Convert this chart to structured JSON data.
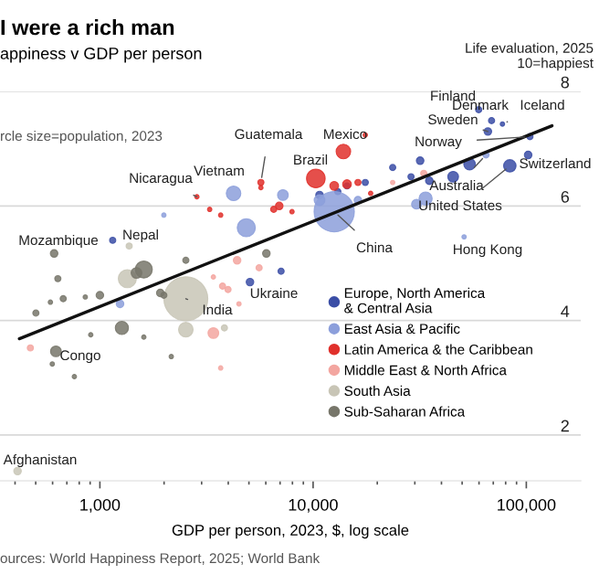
{
  "chart_data": {
    "type": "bubble",
    "title": "I were a rich man",
    "subtitle": "appiness v GDP per person",
    "ylabel": "Life evaluation, 2025\n10=happiest",
    "xlabel": "GDP per person, 2023, $, log scale",
    "log": "x",
    "xlim": [
      340,
      180000
    ],
    "ylim": [
      1.2,
      8
    ],
    "xticks": [
      {
        "value": 1000,
        "label": "1,000"
      },
      {
        "value": 10000,
        "label": "10,000"
      },
      {
        "value": 100000,
        "label": "100,000"
      }
    ],
    "yticks": [
      2,
      4,
      6,
      8
    ],
    "grid": "y",
    "legend": "bottom right",
    "series": [
      {
        "name": "Europe, North America\n& Central Asia",
        "color": "#3b4ea6",
        "x": [
          59800,
          68710,
          77270,
          66030,
          104000,
          102000,
          83700,
          54190,
          45380,
          35080,
          28790,
          23620,
          31770,
          17570,
          14420,
          10720,
          13060,
          5058,
          1148,
          7077
        ],
        "values": [
          7.68,
          7.49,
          7.43,
          7.3,
          7.21,
          6.89,
          6.7,
          6.73,
          6.51,
          6.44,
          6.51,
          6.67,
          6.79,
          6.41,
          6.35,
          6.19,
          6.25,
          4.67,
          5.4,
          4.86
        ],
        "sizes": [
          0.02,
          0.02,
          0.01,
          0.03,
          0.02,
          0.03,
          0.08,
          0.07,
          0.06,
          0.03,
          0.02,
          0.02,
          0.03,
          0.02,
          0.02,
          0.03,
          0.02,
          0.03,
          0.02,
          0.02
        ]
      },
      {
        "name": "East Asia & Pacific",
        "color": "#8c9fdb",
        "x": [
          12560,
          4860,
          4236,
          7217,
          33700,
          30550,
          64700,
          51070,
          16230,
          10720,
          1243,
          1995
        ],
        "values": [
          5.9,
          5.62,
          6.22,
          6.19,
          6.13,
          6.03,
          6.89,
          5.46,
          6.1,
          6.1,
          4.29,
          5.84
        ],
        "sizes": [
          0.84,
          0.17,
          0.11,
          0.06,
          0.09,
          0.05,
          0.02,
          0.01,
          0.03,
          0.06,
          0.03,
          0.01
        ]
      },
      {
        "name": "Latin America & the Caribbean",
        "color": "#e0302b",
        "x": [
          13870,
          10300,
          5690,
          2851,
          12560,
          14420,
          16230,
          17570,
          6535,
          6937,
          7962,
          3273,
          3686,
          5690,
          18620
        ],
        "values": [
          6.95,
          6.48,
          6.41,
          6.16,
          6.35,
          6.38,
          6.41,
          7.24,
          5.94,
          6.0,
          5.9,
          5.94,
          5.84,
          6.32,
          6.22
        ],
        "sizes": [
          0.11,
          0.18,
          0.02,
          0.01,
          0.04,
          0.04,
          0.02,
          0.01,
          0.02,
          0.03,
          0.01,
          0.01,
          0.01,
          0.01,
          0.01
        ]
      },
      {
        "name": "Middle East & North Africa",
        "color": "#f3a6a0",
        "x": [
          4402,
          5582,
          3760,
          3990,
          3406,
          4489,
          3406,
          3686,
          472,
          33040,
          23620
        ],
        "values": [
          5.05,
          4.92,
          4.6,
          4.54,
          4.76,
          4.29,
          3.78,
          3.17,
          3.52,
          6.57,
          6.41
        ],
        "sizes": [
          0.03,
          0.02,
          0.02,
          0.02,
          0.01,
          0.01,
          0.06,
          0.01,
          0.02,
          0.02,
          0.01
        ]
      },
      {
        "name": "South Asia",
        "color": "#c8c5b6",
        "x": [
          2530,
          1345,
          2530,
          1372,
          3837,
          411
        ],
        "values": [
          4.38,
          4.73,
          3.84,
          5.3,
          3.87,
          1.37
        ],
        "sizes": [
          1,
          0.17,
          0.11,
          0.02,
          0.02,
          0.03
        ]
      },
      {
        "name": "Sub-Saharan Africa",
        "color": "#77766a",
        "x": [
          610,
          1607,
          1485,
          1268,
          622,
          635,
          501,
          586,
          673,
          854,
          1000,
          1995,
          1920,
          2530,
          6037,
          598,
          759,
          2162,
          906,
          1607
        ],
        "values": [
          5.17,
          4.89,
          4.83,
          3.87,
          3.46,
          4.73,
          4.13,
          4.32,
          4.38,
          4.41,
          4.44,
          4.44,
          4.48,
          5.05,
          5.17,
          3.24,
          3.02,
          3.37,
          3.75,
          3.71
        ],
        "sizes": [
          0.03,
          0.15,
          0.06,
          0.09,
          0.06,
          0.02,
          0.02,
          0.01,
          0.02,
          0.01,
          0.03,
          0.02,
          0.03,
          0.02,
          0.03,
          0.01,
          0.01,
          0.01,
          0.01,
          0.01
        ]
      },
      {
        "type": "line",
        "color": "#111111",
        "x": [
          419,
          132000
        ],
        "values": [
          3.68,
          7.4
        ]
      }
    ],
    "annotations": [
      {
        "text": "Finland",
        "x": 59800,
        "y": 7.68
      },
      {
        "text": "Denmark",
        "x": 68710,
        "y": 7.49
      },
      {
        "text": "Iceland",
        "x": 77270,
        "y": 7.43
      },
      {
        "text": "Sweden",
        "x": 66030,
        "y": 7.3
      },
      {
        "text": "Norway",
        "x": 104000,
        "y": 7.21
      },
      {
        "text": "Switzerland",
        "x": 102000,
        "y": 6.89
      },
      {
        "text": "Australia",
        "x": 64700,
        "y": 6.89
      },
      {
        "text": "United States",
        "x": 83700,
        "y": 6.7
      },
      {
        "text": "Hong Kong",
        "x": 51070,
        "y": 5.46
      },
      {
        "text": "China",
        "x": 12560,
        "y": 5.9
      },
      {
        "text": "India",
        "x": 2530,
        "y": 4.38
      },
      {
        "text": "Ukraine",
        "x": 5058,
        "y": 4.67
      },
      {
        "text": "Congo",
        "x": 622,
        "y": 3.46
      },
      {
        "text": "Mozambique",
        "x": 610,
        "y": 5.17
      },
      {
        "text": "Nepal",
        "x": 1372,
        "y": 5.3
      },
      {
        "text": "Nicaragua",
        "x": 2851,
        "y": 6.16
      },
      {
        "text": "Vietnam",
        "x": 4236,
        "y": 6.22
      },
      {
        "text": "Guatemala",
        "x": 5690,
        "y": 6.41
      },
      {
        "text": "Mexico",
        "x": 13870,
        "y": 6.95
      },
      {
        "text": "Brazil",
        "x": 10300,
        "y": 6.48
      },
      {
        "text": "Afghanistan",
        "x": 411,
        "y": 1.37
      },
      "rcle size=population, 2023",
      "ources: World Happiness Report, 2025; World Bank"
    ]
  }
}
